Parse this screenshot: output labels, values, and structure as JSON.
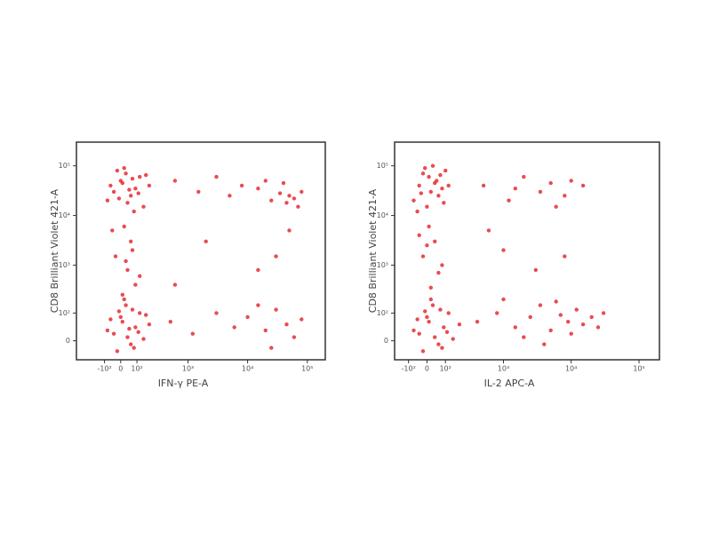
{
  "chart_data": [
    {
      "type": "scatter",
      "x_label": "IFN-γ PE-A",
      "y_label": "CD8 Brilliant Violet 421-A",
      "color": "#e41e26",
      "xlim": [
        -400,
        200000
      ],
      "ylim": [
        -60,
        300000
      ],
      "xticks": [
        {
          "value": -100,
          "label": "-10²"
        },
        0,
        {
          "value": 100,
          "label": "10²"
        },
        {
          "value": 1000,
          "label": "10³"
        },
        {
          "value": 10000,
          "label": "10⁴"
        },
        {
          "value": 100000,
          "label": "10⁵"
        }
      ],
      "yticks": [
        0,
        {
          "value": 100,
          "label": "10²"
        },
        {
          "value": 1000,
          "label": "10³"
        },
        {
          "value": 10000,
          "label": "10⁴"
        },
        {
          "value": 100000,
          "label": "10⁵"
        }
      ],
      "x": [
        -40,
        10,
        60,
        120,
        -80,
        30,
        90,
        150,
        0,
        -20,
        70,
        200,
        40,
        -60,
        110,
        20,
        80,
        -10,
        170,
        50,
        20,
        60,
        -30,
        40,
        90,
        10,
        70,
        -50,
        30,
        120,
        -40,
        10,
        60,
        120,
        -80,
        30,
        90,
        150,
        0,
        -20,
        70,
        200,
        40,
        -60,
        110,
        20,
        80,
        -10,
        170,
        50,
        600,
        1500,
        3000,
        5000,
        8000,
        15000,
        25000,
        35000,
        45000,
        60000,
        80000,
        40000,
        20000,
        50000,
        70000,
        500,
        1200,
        3000,
        6000,
        10000,
        20000,
        30000,
        45000,
        60000,
        80000,
        25000,
        15000,
        2000,
        15000,
        50000,
        600,
        30000
      ],
      "y": [
        30000,
        45000,
        25000,
        60000,
        20000,
        70000,
        35000,
        15000,
        50000,
        80000,
        55000,
        40000,
        18000,
        40000,
        28000,
        90000,
        12000,
        22000,
        65000,
        33000,
        6000,
        3000,
        1500,
        800,
        400,
        250,
        2000,
        5000,
        1200,
        600,
        20,
        60,
        -10,
        100,
        30,
        150,
        40,
        5,
        80,
        -30,
        120,
        50,
        10,
        70,
        25,
        200,
        -20,
        110,
        90,
        35,
        50000,
        30000,
        60000,
        25000,
        40000,
        35000,
        20000,
        28000,
        18000,
        22000,
        30000,
        45000,
        50000,
        25000,
        15000,
        60,
        20,
        100,
        40,
        80,
        30,
        120,
        50,
        10,
        70,
        -20,
        150,
        3000,
        800,
        5000,
        400,
        1500
      ]
    },
    {
      "type": "scatter",
      "x_label": "IL-2 APC-A",
      "y_label": "CD8 Brilliant Violet 421-A",
      "color": "#e41e26",
      "xlim": [
        -200,
        200000
      ],
      "ylim": [
        -60,
        300000
      ],
      "xticks": [
        {
          "value": -100,
          "label": "-10²"
        },
        0,
        {
          "value": 100,
          "label": "10²"
        },
        {
          "value": 1000,
          "label": "10³"
        },
        {
          "value": 10000,
          "label": "10⁴"
        },
        {
          "value": 100000,
          "label": "10⁵"
        }
      ],
      "yticks": [
        0,
        {
          "value": 100,
          "label": "10²"
        },
        {
          "value": 1000,
          "label": "10³"
        },
        {
          "value": 10000,
          "label": "10⁴"
        },
        {
          "value": 100000,
          "label": "10⁵"
        }
      ],
      "x": [
        -40,
        10,
        60,
        100,
        -70,
        30,
        80,
        0,
        -20,
        50,
        -50,
        20,
        90,
        -10,
        40,
        70,
        -30,
        120,
        10,
        40,
        -20,
        60,
        20,
        -40,
        80,
        0,
        -40,
        10,
        60,
        120,
        -70,
        30,
        90,
        150,
        0,
        -20,
        70,
        200,
        40,
        -50,
        110,
        20,
        80,
        -10,
        400,
        800,
        1500,
        2500,
        3500,
        5000,
        7000,
        9000,
        12000,
        15000,
        20000,
        25000,
        30000,
        1000,
        2000,
        6000,
        4000,
        10000,
        500,
        1200,
        2000,
        3500,
        5000,
        8000,
        10000,
        1500,
        6000,
        15000,
        1000,
        3000,
        600,
        8000
      ],
      "y": [
        40000,
        60000,
        25000,
        80000,
        20000,
        100000,
        35000,
        15000,
        70000,
        50000,
        12000,
        30000,
        18000,
        90000,
        45000,
        65000,
        28000,
        40000,
        6000,
        3000,
        1500,
        700,
        350,
        4000,
        1000,
        2500,
        20,
        60,
        -10,
        100,
        30,
        150,
        40,
        5,
        80,
        -30,
        120,
        50,
        10,
        70,
        25,
        200,
        -20,
        110,
        60,
        100,
        40,
        80,
        150,
        30,
        90,
        60,
        120,
        50,
        80,
        40,
        100,
        200,
        10,
        180,
        -10,
        20,
        40000,
        20000,
        60000,
        30000,
        45000,
        25000,
        50000,
        35000,
        15000,
        40000,
        2000,
        800,
        5000,
        1500
      ]
    }
  ]
}
